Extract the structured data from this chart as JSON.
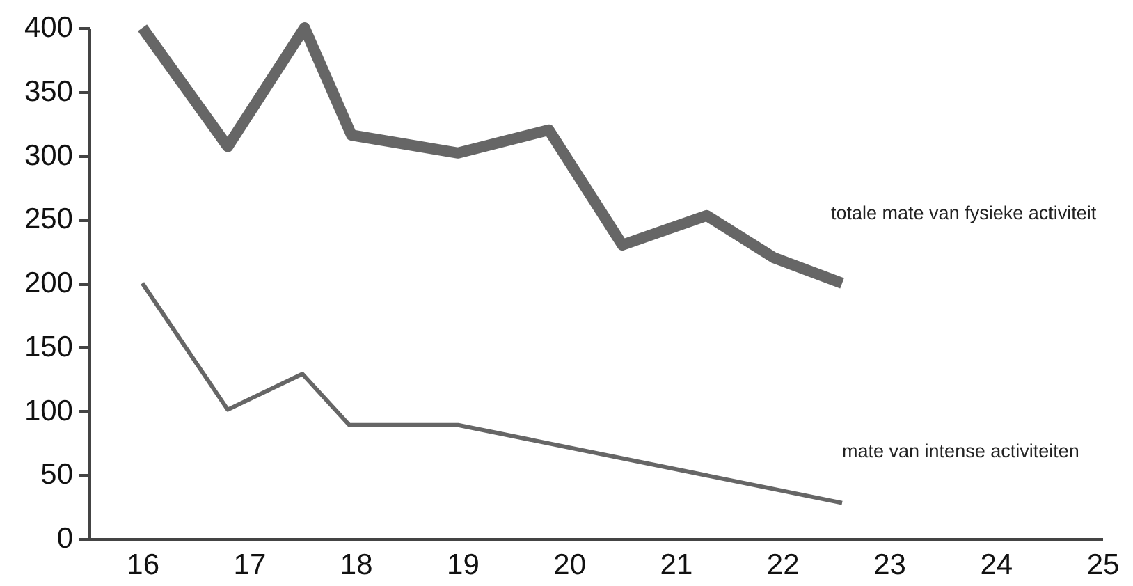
{
  "chart_data": {
    "type": "line",
    "series": [
      {
        "name": "totale mate van fysieke activiteit",
        "color": "#666666",
        "x": [
          16,
          16.8,
          17.52,
          17.96,
          18.96,
          19.81,
          20.5,
          21.29,
          21.92,
          22.56
        ],
        "values": [
          400,
          307,
          400,
          316,
          302,
          320,
          230,
          253,
          220,
          200
        ]
      },
      {
        "name": "mate van intense activiteiten",
        "color": "#666666",
        "x": [
          16,
          16.8,
          17.5,
          17.94,
          18.96,
          22.56
        ],
        "values": [
          200,
          101,
          129,
          89,
          89,
          28
        ]
      }
    ],
    "xlim": [
      15.5,
      25
    ],
    "xticks": [
      16,
      17,
      18,
      19,
      20,
      21,
      22,
      23,
      24,
      25
    ],
    "ylim": [
      0,
      400
    ],
    "yticks": [
      0,
      50,
      100,
      150,
      200,
      250,
      300,
      350,
      400
    ],
    "grid": false,
    "legend": false,
    "marker": "none",
    "line_style": "solid"
  }
}
